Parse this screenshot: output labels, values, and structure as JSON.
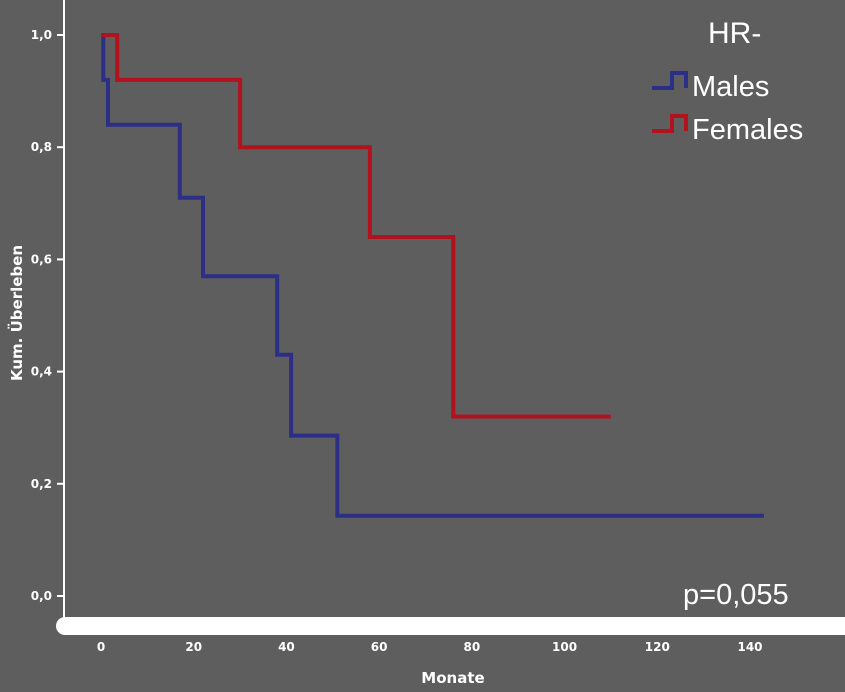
{
  "chart_data": {
    "type": "line",
    "step": true,
    "xlabel": "Monate",
    "ylabel": "Kum. Überleben",
    "xlim": [
      0,
      140
    ],
    "ylim": [
      0.0,
      1.0
    ],
    "xticks": [
      0,
      20,
      40,
      60,
      80,
      100,
      120,
      140
    ],
    "xtick_labels": [
      "0",
      "20",
      "40",
      "60",
      "80",
      "100",
      "120",
      "140"
    ],
    "yticks": [
      0.0,
      0.2,
      0.4,
      0.6,
      0.8,
      1.0
    ],
    "ytick_labels": [
      "0,0",
      "0,2",
      "0,4",
      "0,6",
      "0,8",
      "1,0"
    ],
    "grid": false,
    "legend": {
      "title": "HR-",
      "placement": "top-right"
    },
    "annotation": "p=0,055",
    "series": [
      {
        "name": "Males",
        "color": "#2b2f86",
        "x": [
          0,
          0.5,
          0.5,
          1.5,
          1.5,
          17,
          17,
          22,
          22,
          38,
          38,
          41,
          41,
          51,
          51,
          143
        ],
        "y": [
          1.0,
          1.0,
          0.92,
          0.92,
          0.84,
          0.84,
          0.71,
          0.71,
          0.57,
          0.57,
          0.43,
          0.43,
          0.286,
          0.286,
          0.143,
          0.143
        ]
      },
      {
        "name": "Females",
        "color": "#b1121d",
        "x": [
          0,
          3.5,
          3.5,
          30,
          30,
          58,
          58,
          76,
          76,
          110
        ],
        "y": [
          1.0,
          1.0,
          0.92,
          0.92,
          0.8,
          0.8,
          0.64,
          0.64,
          0.32,
          0.32
        ]
      }
    ]
  }
}
